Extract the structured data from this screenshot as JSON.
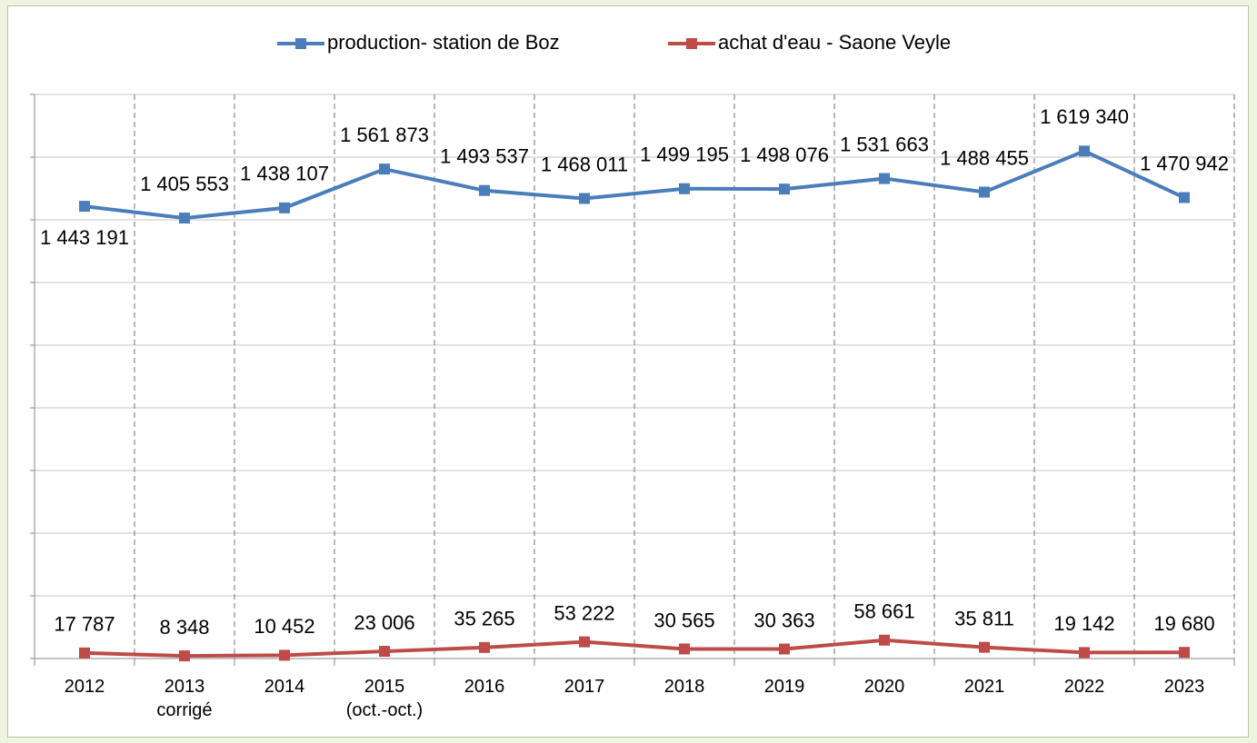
{
  "chart_data": {
    "type": "line",
    "categories": [
      "2012",
      "2013\ncorrigé",
      "2014",
      "2015\n(oct.-oct.)",
      "2016",
      "2017",
      "2018",
      "2019",
      "2020",
      "2021",
      "2022",
      "2023"
    ],
    "series": [
      {
        "name": "production- station de Boz",
        "color": "#4a7ebb",
        "values": [
          1443191,
          1405553,
          1438107,
          1561873,
          1493537,
          1468011,
          1499195,
          1498076,
          1531663,
          1488455,
          1619340,
          1470942
        ],
        "value_labels": [
          "1 443 191",
          "1 405 553",
          "1 438 107",
          "1 561 873",
          "1 493 537",
          "1 468 011",
          "1 499 195",
          "1 498 076",
          "1 531 663",
          "1 488 455",
          "1 619 340",
          "1 470 942"
        ]
      },
      {
        "name": "achat d'eau - Saone Veyle",
        "color": "#be4b48",
        "values": [
          17787,
          8348,
          10452,
          23006,
          35265,
          53222,
          30565,
          30363,
          58661,
          35811,
          19142,
          19680
        ],
        "value_labels": [
          "17 787",
          "8 348",
          "10 452",
          "23 006",
          "35 265",
          "53 222",
          "30 565",
          "30 363",
          "58 661",
          "35 811",
          "19 142",
          "19 680"
        ]
      }
    ],
    "ylim": [
      0,
      1800000
    ],
    "yticks": [
      0,
      200000,
      400000,
      600000,
      800000,
      1000000,
      1200000,
      1400000,
      1600000,
      1800000
    ],
    "grid": true
  }
}
